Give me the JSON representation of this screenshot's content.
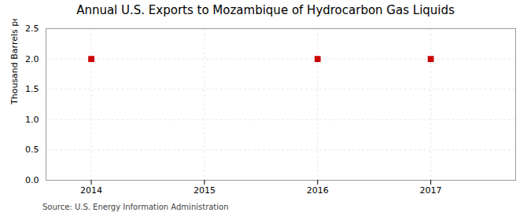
{
  "chart_data": {
    "type": "scatter",
    "title": "Annual U.S. Exports to Mozambique of Hydrocarbon Gas Liquids",
    "ylabel": "Thousand Barrels per Day",
    "source": "Source: U.S. Energy Information Administration",
    "x": [
      2014,
      2016,
      2017
    ],
    "values": [
      2.0,
      2.0,
      2.0
    ],
    "color": "#cc0000",
    "marker": "square",
    "xlim": [
      2013.6,
      2017.75
    ],
    "ylim": [
      0.0,
      2.5
    ],
    "xticks": [
      2014,
      2015,
      2016,
      2017
    ],
    "yticks": [
      {
        "value": 0.0,
        "label": "0.0"
      },
      0.5,
      {
        "value": 1.0,
        "label": "1.0"
      },
      1.5,
      {
        "value": 2.0,
        "label": "2.0"
      },
      2.5
    ],
    "grid": true
  }
}
